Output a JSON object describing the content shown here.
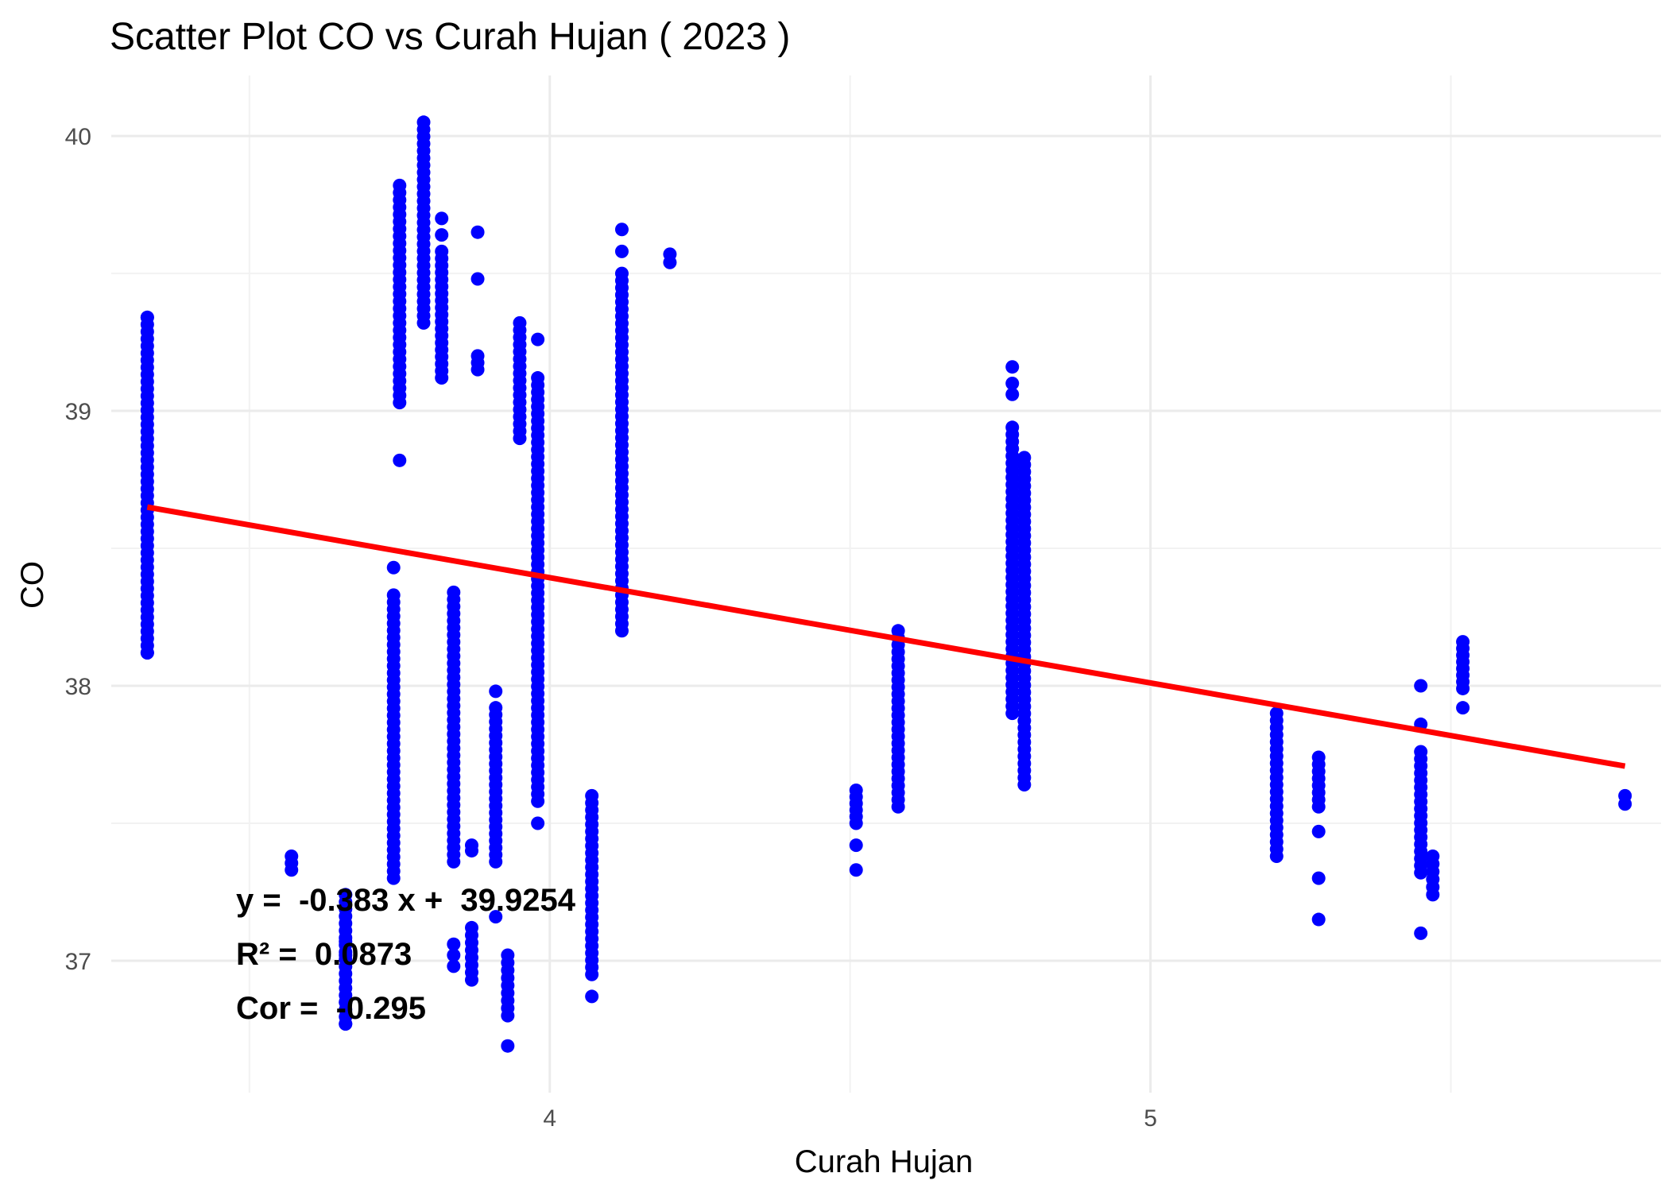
{
  "chart_data": {
    "type": "scatter",
    "title": "Scatter Plot CO vs Curah Hujan ( 2023 )",
    "xlabel": "Curah Hujan",
    "ylabel": "CO",
    "x_ticks": [
      4,
      5
    ],
    "y_ticks": [
      37,
      38,
      39,
      40
    ],
    "xlim": [
      3.27,
      5.85
    ],
    "ylim": [
      36.52,
      40.22
    ],
    "grid": true,
    "point_color": "#0000ff",
    "line_color": "#ff0000",
    "regression": {
      "slope": -0.383,
      "intercept": 39.9254,
      "x_start": 3.33,
      "x_end": 5.79,
      "equation_label": "y =  -0.383 x +  39.9254",
      "r2_label": "R² =  0.0873",
      "cor_label": "Cor =  -0.295"
    },
    "clusters": [
      {
        "x": 3.33,
        "y_min": 38.12,
        "y_max": 39.34,
        "extra": [
          38.12,
          39.34
        ]
      },
      {
        "x": 3.57,
        "y_min": 37.33,
        "y_max": 37.38,
        "extra": []
      },
      {
        "x": 3.66,
        "y_min": 36.77,
        "y_max": 37.24,
        "extra": [
          36.77,
          36.85,
          37.02,
          37.07,
          37.24
        ]
      },
      {
        "x": 3.74,
        "y_min": 37.3,
        "y_max": 38.33,
        "extra": [
          38.43
        ]
      },
      {
        "x": 3.75,
        "y_min": 39.03,
        "y_max": 39.82,
        "extra": [
          38.82
        ]
      },
      {
        "x": 3.79,
        "y_min": 39.32,
        "y_max": 40.05,
        "extra": []
      },
      {
        "x": 3.82,
        "y_min": 39.12,
        "y_max": 39.58,
        "extra": [
          39.64,
          39.7
        ]
      },
      {
        "x": 3.84,
        "y_min": 37.36,
        "y_max": 38.34,
        "extra": [
          36.98,
          37.02,
          37.06
        ]
      },
      {
        "x": 3.87,
        "y_min": 36.93,
        "y_max": 37.12,
        "extra": [
          37.4,
          37.42
        ]
      },
      {
        "x": 3.88,
        "y_min": 39.15,
        "y_max": 39.2,
        "extra": [
          39.48,
          39.65
        ]
      },
      {
        "x": 3.91,
        "y_min": 37.36,
        "y_max": 37.92,
        "extra": [
          37.98,
          37.16
        ]
      },
      {
        "x": 3.93,
        "y_min": 36.8,
        "y_max": 37.02,
        "extra": [
          36.69
        ]
      },
      {
        "x": 3.95,
        "y_min": 38.9,
        "y_max": 39.32,
        "extra": []
      },
      {
        "x": 3.98,
        "y_min": 37.58,
        "y_max": 39.12,
        "extra": [
          37.5,
          39.26
        ]
      },
      {
        "x": 4.07,
        "y_min": 36.95,
        "y_max": 37.6,
        "extra": [
          36.87
        ]
      },
      {
        "x": 4.12,
        "y_min": 38.2,
        "y_max": 39.5,
        "extra": [
          39.58,
          39.66
        ]
      },
      {
        "x": 4.2,
        "y_min": 39.54,
        "y_max": 39.57,
        "extra": []
      },
      {
        "x": 4.51,
        "y_min": 37.5,
        "y_max": 37.62,
        "extra": [
          37.42,
          37.33
        ]
      },
      {
        "x": 4.58,
        "y_min": 37.56,
        "y_max": 38.2,
        "extra": []
      },
      {
        "x": 4.77,
        "y_min": 37.9,
        "y_max": 38.94,
        "extra": [
          39.06,
          39.1,
          39.16
        ]
      },
      {
        "x": 4.79,
        "y_min": 37.64,
        "y_max": 38.83,
        "extra": []
      },
      {
        "x": 5.21,
        "y_min": 37.38,
        "y_max": 37.9,
        "extra": []
      },
      {
        "x": 5.28,
        "y_min": 37.56,
        "y_max": 37.74,
        "extra": [
          37.47,
          37.3,
          37.15
        ]
      },
      {
        "x": 5.45,
        "y_min": 37.32,
        "y_max": 37.76,
        "extra": [
          37.1,
          37.86,
          38.0
        ]
      },
      {
        "x": 5.47,
        "y_min": 37.24,
        "y_max": 37.38,
        "extra": []
      },
      {
        "x": 5.52,
        "y_min": 37.99,
        "y_max": 38.16,
        "extra": [
          37.92
        ]
      },
      {
        "x": 5.79,
        "y_min": 37.57,
        "y_max": 37.6,
        "extra": []
      }
    ]
  }
}
